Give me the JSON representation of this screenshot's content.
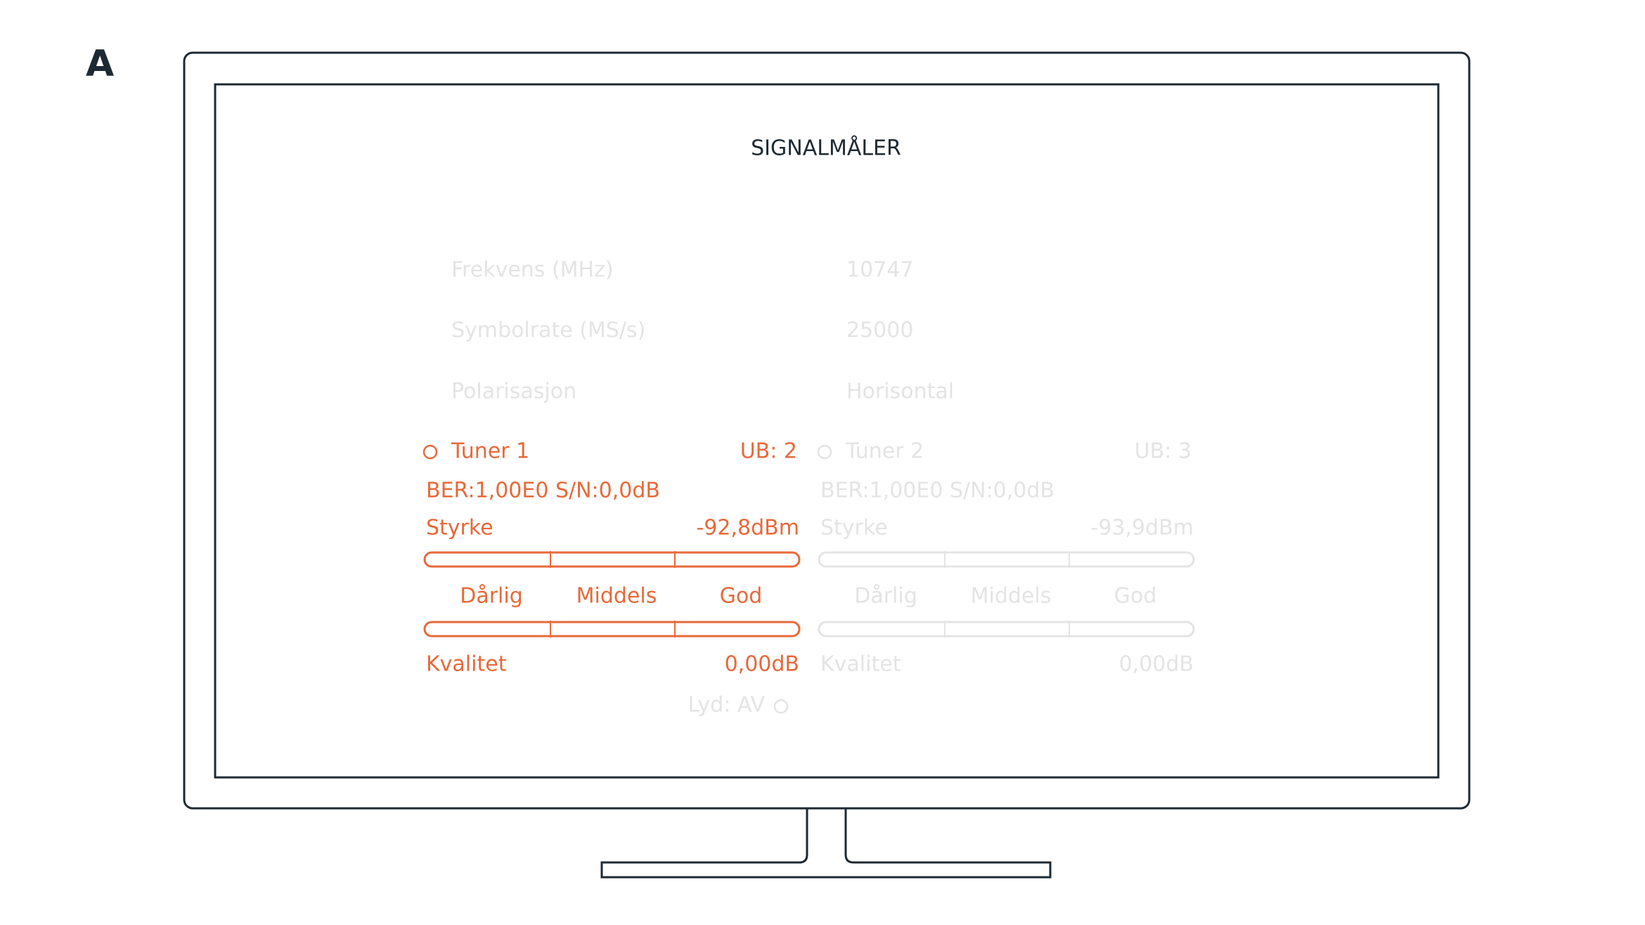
{
  "figure_label": "A",
  "screen": {
    "title": "SIGNALMÅLER",
    "info": [
      [
        "Frekvens (MHz)",
        "10747"
      ],
      [
        "Symbolrate (MS/s)",
        "25000"
      ],
      [
        "Polarisasjon",
        "Horisontal"
      ]
    ],
    "tuners": [
      {
        "name": "Tuner 1",
        "ub": "UB: 2",
        "ber": "BER:1,00E0 S/N:0,0dB",
        "strength_label": "Styrke",
        "strength_value": "-92,8dBm",
        "scale": [
          "Dårlig",
          "Middels",
          "God"
        ],
        "quality_label": "Kvalitet",
        "quality_value": "0,00dB"
      },
      {
        "name": "Tuner 2",
        "ub": "UB: 3",
        "ber": "BER:1,00E0 S/N:0,0dB",
        "strength_label": "Styrke",
        "strength_value": "-93,9dBm",
        "scale": [
          "Dårlig",
          "Middels",
          "God"
        ],
        "quality_label": "Kvalitet",
        "quality_value": "0,00dB"
      }
    ],
    "audio": "Lyd: AV"
  }
}
